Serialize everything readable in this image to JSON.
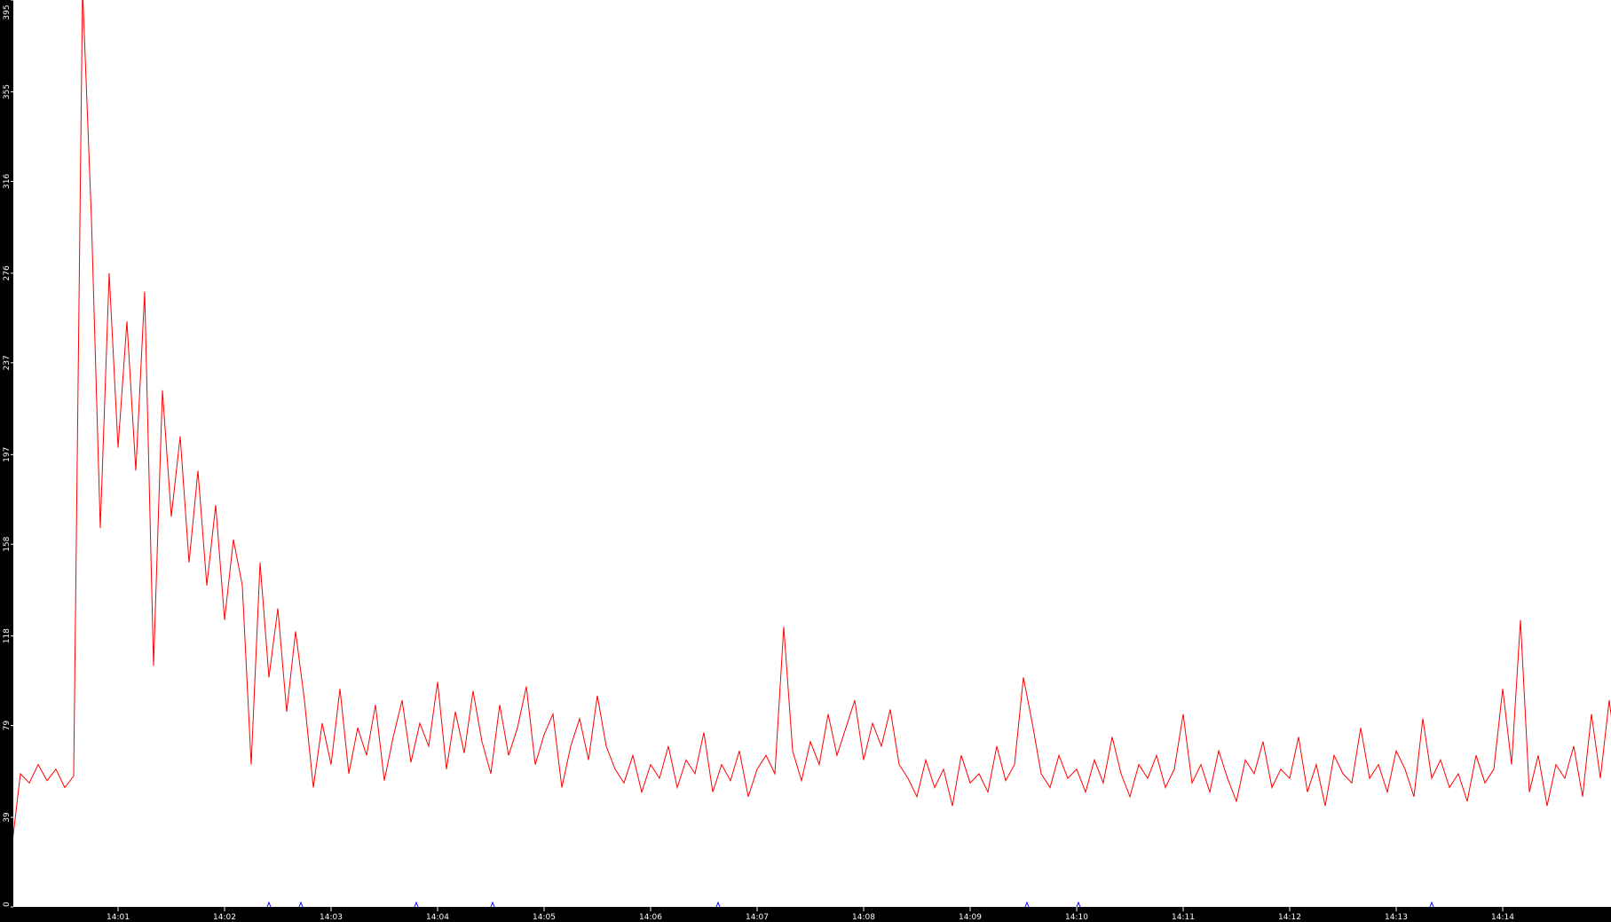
{
  "chart_data": {
    "type": "line",
    "title": "",
    "xlabel": "",
    "ylabel": "",
    "x_start": "14:00:00",
    "x_interval_seconds": 5,
    "xlim": [
      "14:00:01",
      "14:15:01"
    ],
    "ylim": [
      0,
      395
    ],
    "y_ticks": [
      "0",
      "39",
      "79",
      "118",
      "158",
      "197",
      "237",
      "276",
      "316",
      "355",
      "395"
    ],
    "x_ticks": [
      "14:01",
      "14:02",
      "14:03",
      "14:04",
      "14:05",
      "14:06",
      "14:07",
      "14:08",
      "14:09",
      "14:10",
      "14:11",
      "14:12",
      "14:13",
      "14:14"
    ],
    "grid": false,
    "colors": {
      "line": "#ff0000",
      "background": "#ffffff",
      "axis": "#000000",
      "axis_text": "#ffffff",
      "marker": "#0000ff"
    },
    "series": [
      {
        "values": [
          25,
          58,
          54,
          62,
          55,
          60,
          52,
          57,
          400,
          300,
          165,
          276,
          200,
          255,
          190,
          268,
          105,
          225,
          170,
          205,
          150,
          190,
          140,
          175,
          125,
          160,
          140,
          62,
          150,
          100,
          130,
          85,
          120,
          90,
          52,
          80,
          62,
          95,
          58,
          78,
          66,
          88,
          55,
          74,
          90,
          63,
          80,
          70,
          98,
          60,
          85,
          67,
          94,
          72,
          58,
          88,
          66,
          78,
          96,
          62,
          75,
          84,
          52,
          70,
          82,
          64,
          92,
          70,
          60,
          54,
          66,
          50,
          62,
          56,
          70,
          52,
          64,
          58,
          76,
          50,
          62,
          55,
          68,
          48,
          60,
          66,
          58,
          122,
          68,
          55,
          72,
          62,
          84,
          66,
          78,
          90,
          64,
          80,
          70,
          86,
          62,
          56,
          48,
          64,
          52,
          60,
          44,
          66,
          54,
          58,
          50,
          70,
          55,
          62,
          100,
          80,
          58,
          52,
          66,
          56,
          60,
          50,
          64,
          54,
          74,
          58,
          48,
          62,
          56,
          66,
          52,
          60,
          84,
          54,
          62,
          50,
          68,
          56,
          46,
          64,
          58,
          72,
          52,
          60,
          56,
          74,
          50,
          62,
          44,
          66,
          58,
          54,
          78,
          56,
          62,
          50,
          68,
          60,
          48,
          82,
          56,
          64,
          52,
          58,
          46,
          66,
          54,
          60,
          95,
          62,
          125,
          50,
          66,
          44,
          62,
          56,
          70,
          48,
          84,
          56,
          90,
          60
        ]
      }
    ],
    "markers": [
      "14:02:25",
      "14:02:43",
      "14:03:48",
      "14:04:31",
      "14:06:38",
      "14:09:32",
      "14:10:01",
      "14:13:20"
    ]
  }
}
